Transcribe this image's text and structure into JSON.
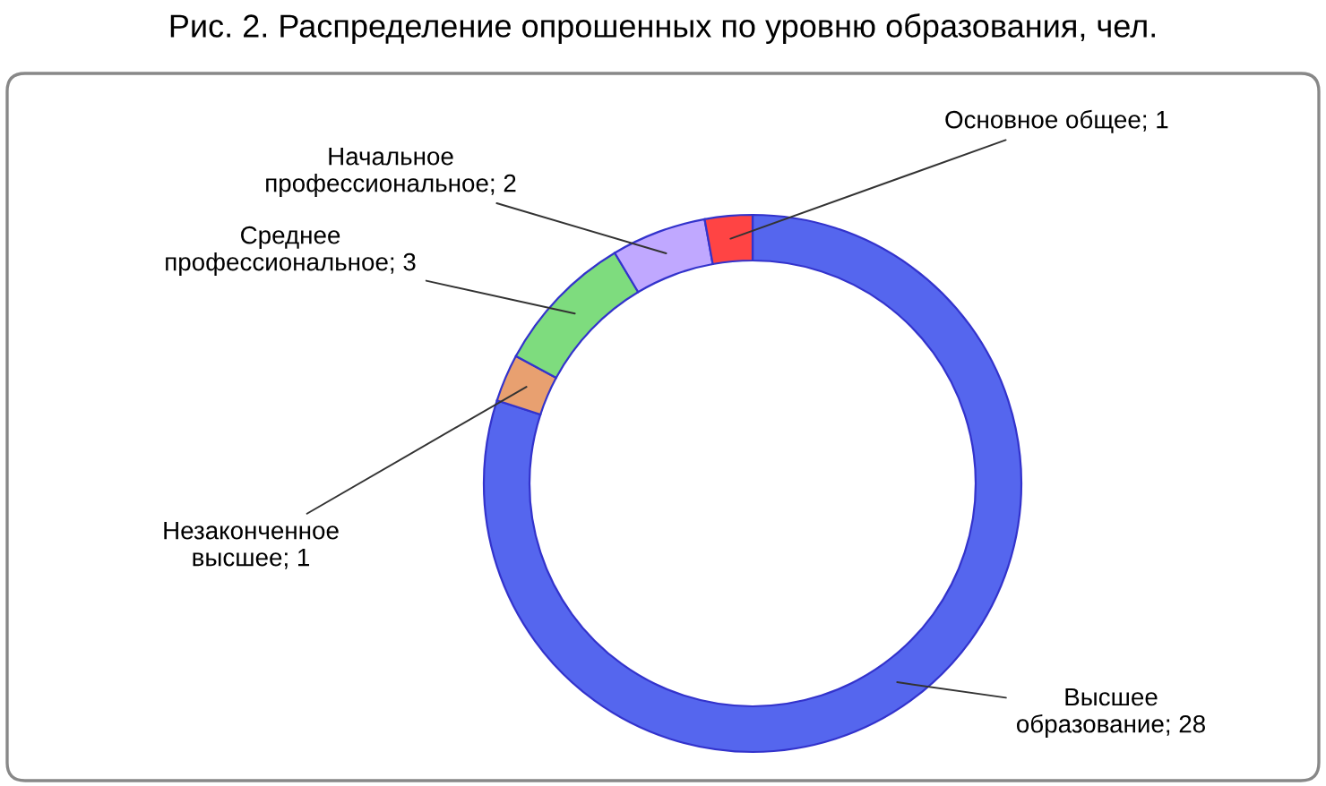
{
  "chart_data": {
    "type": "donut",
    "title": "Рис. 2. Распределение опрошенных по уровню образования, чел.",
    "categories": [
      "Высшее образование; 28",
      "Незаконченное высшее; 1",
      "Среднее профессиональное; 3",
      "Начальное профессиональное; 2",
      "Основное общее; 1"
    ],
    "values": [
      28,
      1,
      3,
      2,
      1
    ],
    "colors": [
      "#5566ee",
      "#e8a070",
      "#7edc7e",
      "#c0a8ff",
      "#ff4444"
    ],
    "legend": false
  }
}
